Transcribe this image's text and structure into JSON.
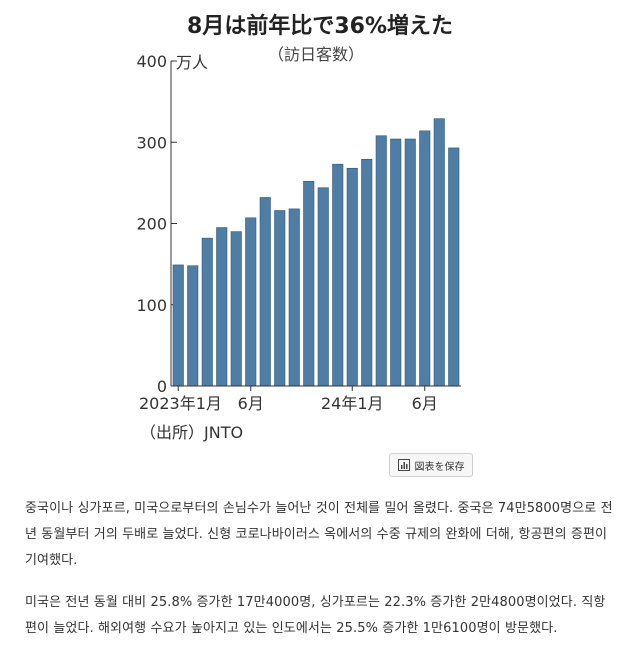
{
  "chart_data": {
    "type": "bar",
    "title": "8月は前年比で36%増えた",
    "subtitle": "（訪日客数）",
    "unit_label": "万人",
    "ylim": [
      0,
      400
    ],
    "yticks": [
      "400",
      "300",
      "200",
      "100",
      "0"
    ],
    "x_tick_labels": [
      {
        "label": "2023年1月",
        "index": 0
      },
      {
        "label": "6月",
        "index": 5
      },
      {
        "label": "24年1月",
        "index": 12
      },
      {
        "label": "6月",
        "index": 17
      }
    ],
    "categories": [
      "2023-01",
      "2023-02",
      "2023-03",
      "2023-04",
      "2023-05",
      "2023-06",
      "2023-07",
      "2023-08",
      "2023-09",
      "2023-10",
      "2023-11",
      "2023-12",
      "2024-01",
      "2024-02",
      "2024-03",
      "2024-04",
      "2024-05",
      "2024-06",
      "2024-07",
      "2024-08"
    ],
    "values": [
      149,
      148,
      182,
      195,
      190,
      207,
      232,
      216,
      218,
      252,
      244,
      273,
      268,
      279,
      308,
      304,
      304,
      314,
      329,
      293
    ],
    "source": "（出所）JNTO",
    "bar_color": "#4e7ea5"
  },
  "toolbar": {
    "save_label": "図表を保存"
  },
  "article": {
    "paragraph1": "중국이나 싱가포르, 미국으로부터의 손님수가 늘어난 것이 전체를 밀어 올렸다. 중국은 74만5800명으로 전년 동월부터 거의 두배로 늘었다. 신형 코로나바이러스 옥에서의 수중 규제의 완화에 더해, 항공편의 증편이 기여했다.",
    "paragraph2": "미국은 전년 동월 대비 25.8% 증가한 17만4000명, 싱가포르는 22.3% 증가한 2만4800명이었다. 직항편이 늘었다. 해외여행 수요가 높아지고 있는 인도에서는 25.5% 증가한 1만6100명이 방문했다."
  }
}
